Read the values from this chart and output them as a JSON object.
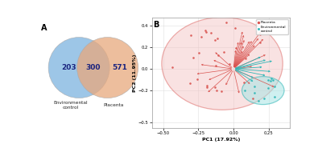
{
  "venn_left_val": "203",
  "venn_mid_val": "300",
  "venn_right_val": "571",
  "venn_left_label": "Environmental\ncontrol",
  "venn_right_label": "Placenta",
  "venn_left_color": "#7cb3e0",
  "venn_right_color": "#e8a87c",
  "venn_text_color": "#1a237e",
  "panel_a_label": "A",
  "panel_b_label": "B",
  "pc1_label": "PC1 (17.92%)",
  "pc2_label": "PC2 (11.95%)",
  "pc1_ticks": [
    -0.5,
    -0.25,
    0.0,
    0.25
  ],
  "pc2_ticks": [
    -0.5,
    -0.2,
    0.0,
    0.2,
    0.4
  ],
  "legend_placenta": "Placenta",
  "legend_env": "Environmental\ncontrol",
  "placenta_color": "#d9534f",
  "env_color": "#2ab5b5",
  "big_circle_color": "#f2bfbf",
  "small_circle_color": "#a8e4e4",
  "big_circle_edge": "#d9534f",
  "small_circle_edge": "#2ab5b5",
  "background": "#ffffff",
  "grid_color": "#e0e0e0"
}
